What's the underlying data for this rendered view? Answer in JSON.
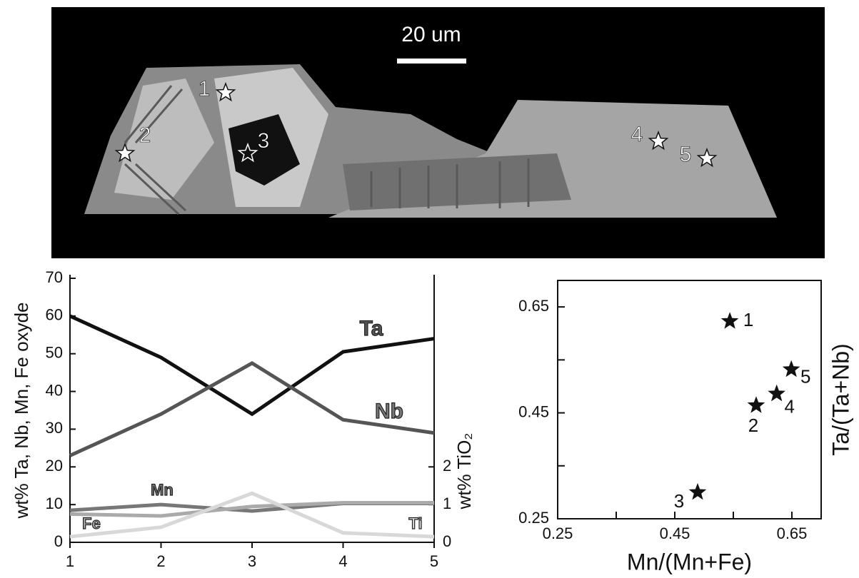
{
  "image": {
    "scale_bar": "20 um",
    "points": [
      "1",
      "2",
      "3",
      "4",
      "5"
    ]
  },
  "chart_data": [
    {
      "type": "line",
      "x": [
        1,
        2,
        3,
        4,
        5
      ],
      "xlim": [
        1,
        5
      ],
      "xticks": [
        1,
        2,
        3,
        4,
        5
      ],
      "ylim": [
        0,
        70
      ],
      "yticks": [
        0,
        10,
        20,
        30,
        40,
        50,
        60,
        70
      ],
      "y2lim": [
        0,
        7
      ],
      "y2ticks": [
        0,
        1,
        2
      ],
      "y_label": "wt% Ta, Nb, Mn, Fe oxyde",
      "y2_label": "wt% TiO₂",
      "series": [
        {
          "name": "Ta",
          "color": "#111111",
          "values": [
            60,
            49,
            34,
            50.5,
            54
          ]
        },
        {
          "name": "Nb",
          "color": "#555555",
          "values": [
            23,
            34,
            47.5,
            32.5,
            29
          ]
        },
        {
          "name": "Mn",
          "color": "#777777",
          "values": [
            8.5,
            10,
            8.3,
            10.3,
            10.3
          ]
        },
        {
          "name": "Fe",
          "color": "#aaaaaa",
          "values": [
            7.5,
            7,
            9.5,
            10.5,
            10.5
          ]
        },
        {
          "name": "Ti",
          "color": "#d8d8d8",
          "axis": "y2",
          "values": [
            0.15,
            0.4,
            1.3,
            0.25,
            0.15
          ]
        }
      ]
    },
    {
      "type": "scatter",
      "x": [
        0.544,
        0.589,
        0.489,
        0.624,
        0.649
      ],
      "values": [
        0.623,
        0.464,
        0.3,
        0.486,
        0.532
      ],
      "labels": [
        "1",
        "2",
        "3",
        "4",
        "5"
      ],
      "color": "#111111",
      "xlim": [
        0.25,
        0.7
      ],
      "xticks": [
        0.25,
        0.45,
        0.65
      ],
      "minor_xticks": [
        0.35,
        0.55
      ],
      "ylim": [
        0.25,
        0.7
      ],
      "yticks": [
        0.25,
        0.45,
        0.65
      ],
      "minor_yticks": [
        0.35,
        0.55
      ],
      "x_label": "Mn/(Mn+Fe)",
      "y_label": "Ta/(Ta+Nb)"
    }
  ]
}
